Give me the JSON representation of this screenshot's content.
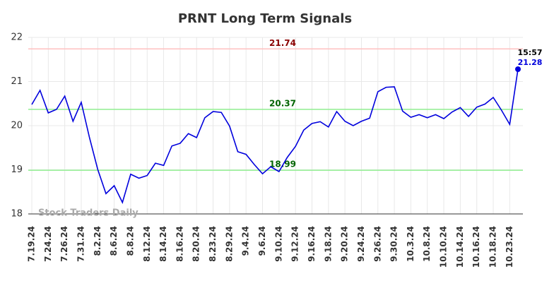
{
  "chart_data": {
    "type": "line",
    "title": "PRNT Long Term Signals",
    "categories": [
      "7.19.24",
      null,
      "7.24.24",
      null,
      "7.26.24",
      null,
      "7.31.24",
      null,
      "8.2.24",
      null,
      "8.6.24",
      null,
      "8.8.24",
      null,
      "8.12.24",
      null,
      "8.14.24",
      null,
      "8.16.24",
      null,
      "8.20.24",
      null,
      "8.23.24",
      null,
      "8.29.24",
      null,
      "9.4.24",
      null,
      "9.6.24",
      null,
      "9.10.24",
      null,
      "9.12.24",
      null,
      "9.16.24",
      null,
      "9.18.24",
      null,
      "9.20.24",
      null,
      "9.24.24",
      null,
      "9.26.24",
      null,
      "9.30.24",
      null,
      "10.3.24",
      null,
      "10.8.24",
      null,
      "10.10.24",
      null,
      "10.14.24",
      null,
      "10.16.24",
      null,
      "10.18.24",
      null,
      "10.23.24",
      null
    ],
    "series": [
      {
        "color": "#0000dd",
        "values": [
          20.48,
          20.8,
          20.29,
          20.37,
          20.67,
          20.1,
          20.53,
          19.73,
          19.01,
          18.46,
          18.64,
          18.26,
          18.9,
          18.81,
          18.87,
          19.15,
          19.1,
          19.54,
          19.6,
          19.82,
          19.73,
          20.18,
          20.32,
          20.3,
          19.99,
          19.41,
          19.35,
          19.12,
          18.91,
          19.07,
          18.96,
          19.28,
          19.53,
          19.9,
          20.05,
          20.09,
          19.97,
          20.32,
          20.1,
          20.0,
          20.1,
          20.17,
          20.77,
          20.87,
          20.88,
          20.33,
          20.19,
          20.25,
          20.18,
          20.25,
          20.16,
          20.31,
          20.41,
          20.21,
          20.42,
          20.49,
          20.64,
          20.35,
          20.03,
          21.28
        ]
      }
    ],
    "ylim": [
      18,
      22
    ],
    "yticks": [
      18,
      19,
      20,
      21,
      22
    ],
    "grid": true,
    "hlines": [
      {
        "value": 21.74,
        "color": "#ffc0c0",
        "label_color": "#8b0000"
      },
      {
        "value": 20.37,
        "color": "#90ee90",
        "label_color": "#006400"
      },
      {
        "value": 18.99,
        "color": "#90ee90",
        "label_color": "#006400"
      }
    ],
    "last_time": "15:57",
    "watermark": "Stock Traders Daily"
  }
}
